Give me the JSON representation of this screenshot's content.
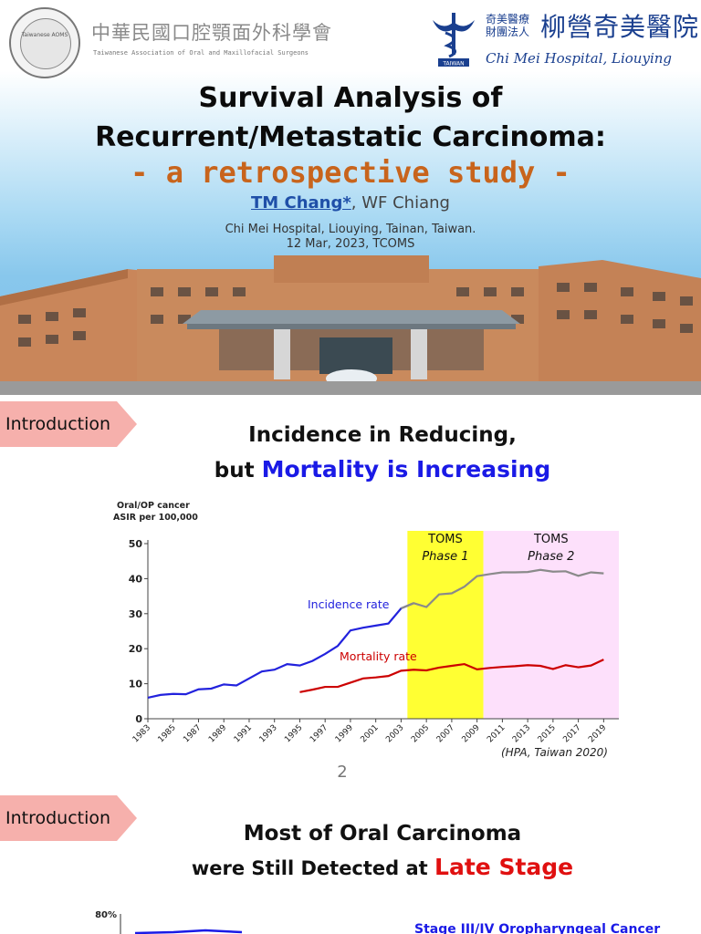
{
  "slide1": {
    "org_left": {
      "name_cn": "中華民國口腔顎面外科學會",
      "name_en": "Taiwanese Association of Oral and Maxillofacial Surgeons",
      "emblem_text": "Taiwanese AOMS"
    },
    "org_right": {
      "small_cn_line1": "奇美醫療",
      "small_cn_line2": "財團法人",
      "name_cn": "柳營奇美醫院",
      "name_en": "Chi Mei Hospital, Liouying",
      "emblem_label": "TAIWAN"
    },
    "title_line1": "Survival Analysis of",
    "title_line2": "Recurrent/Metastatic Carcinoma:",
    "subtitle": "- a retrospective study -",
    "author_main": "TM Chang*",
    "author_sep": ", ",
    "author_other": "WF Chiang",
    "affiliation": "Chi Mei Hospital, Liouying, Tainan, Taiwan.",
    "date_event": "12 Mar, 2023, TCOMS"
  },
  "slide2": {
    "tag": "Introduction",
    "heading_line1": "Incidence in Reducing,",
    "heading_line2_prefix": "but ",
    "heading_line2_highlight": "Mortality is Increasing",
    "citation": "(HPA, Taiwan 2020)",
    "page_number": "2",
    "colors": {
      "highlight": "#1a1ae6",
      "phase1": "#ffff33",
      "phase2": "#fde0fb"
    },
    "chart_data": {
      "type": "line",
      "ylabel": "Oral/OP cancer ASIR per 100,000",
      "ylabel_line1": "Oral/OP cancer",
      "ylabel_line2": "ASIR per 100,000",
      "ylim": [
        0,
        50
      ],
      "yticks": [
        "0",
        "10",
        "20",
        "30",
        "40",
        "50"
      ],
      "xticks": [
        "1983",
        "1985",
        "1987",
        "1989",
        "1991",
        "1993",
        "1995",
        "1997",
        "1999",
        "2001",
        "2003",
        "2005",
        "2007",
        "2009",
        "2011",
        "2013",
        "2015",
        "2017",
        "2019"
      ],
      "xlim": [
        1983,
        2019
      ],
      "bands": [
        {
          "label_line1": "TOMS",
          "label_line2": "Phase 1",
          "from": 2003.5,
          "to": 2009.5,
          "color": "#ffff33"
        },
        {
          "label_line1": "TOMS",
          "label_line2": "Phase 2",
          "from": 2009.5,
          "to": 2020.2,
          "color": "#fde0fb"
        }
      ],
      "series": [
        {
          "name": "Incidence rate",
          "color": "#2222dd",
          "color_after": "#8a8a8a",
          "after_year": 2003.5,
          "x": [
            1983,
            1984,
            1985,
            1986,
            1987,
            1988,
            1989,
            1990,
            1991,
            1992,
            1993,
            1994,
            1995,
            1996,
            1997,
            1998,
            1999,
            2000,
            2001,
            2002,
            2003,
            2004,
            2005,
            2006,
            2007,
            2008,
            2009,
            2010,
            2011,
            2012,
            2013,
            2014,
            2015,
            2016,
            2017,
            2018,
            2019
          ],
          "values": [
            6.0,
            6.8,
            7.1,
            7.0,
            8.4,
            8.6,
            9.8,
            9.5,
            11.5,
            13.5,
            14.0,
            15.6,
            15.2,
            16.5,
            18.5,
            20.8,
            25.2,
            26.0,
            26.6,
            27.2,
            31.5,
            33.0,
            31.9,
            35.5,
            35.8,
            37.7,
            40.7,
            41.3,
            41.8,
            41.8,
            41.9,
            42.5,
            42.0,
            42.1,
            40.8,
            41.8,
            41.5
          ]
        },
        {
          "name": "Mortality rate",
          "color": "#cc0000",
          "x": [
            1995,
            1996,
            1997,
            1998,
            1999,
            2000,
            2001,
            2002,
            2003,
            2004,
            2005,
            2006,
            2007,
            2008,
            2009,
            2010,
            2011,
            2012,
            2013,
            2014,
            2015,
            2016,
            2017,
            2018,
            2019
          ],
          "values": [
            7.6,
            8.3,
            9.1,
            9.1,
            10.3,
            11.5,
            11.8,
            12.2,
            13.7,
            14.0,
            13.8,
            14.6,
            15.1,
            15.6,
            14.1,
            14.5,
            14.8,
            15.0,
            15.3,
            15.1,
            14.2,
            15.3,
            14.7,
            15.2,
            16.9
          ]
        }
      ]
    }
  },
  "slide3": {
    "tag": "Introduction",
    "heading_line1": "Most of Oral Carcinoma",
    "heading_line2_prefix": "were Still Detected at ",
    "heading_line2_highlight": "Late Stage",
    "chart_data": {
      "type": "line",
      "ytick_top": "80%",
      "series_label": "Stage III/IV Oropharyngeal Cancer"
    }
  }
}
